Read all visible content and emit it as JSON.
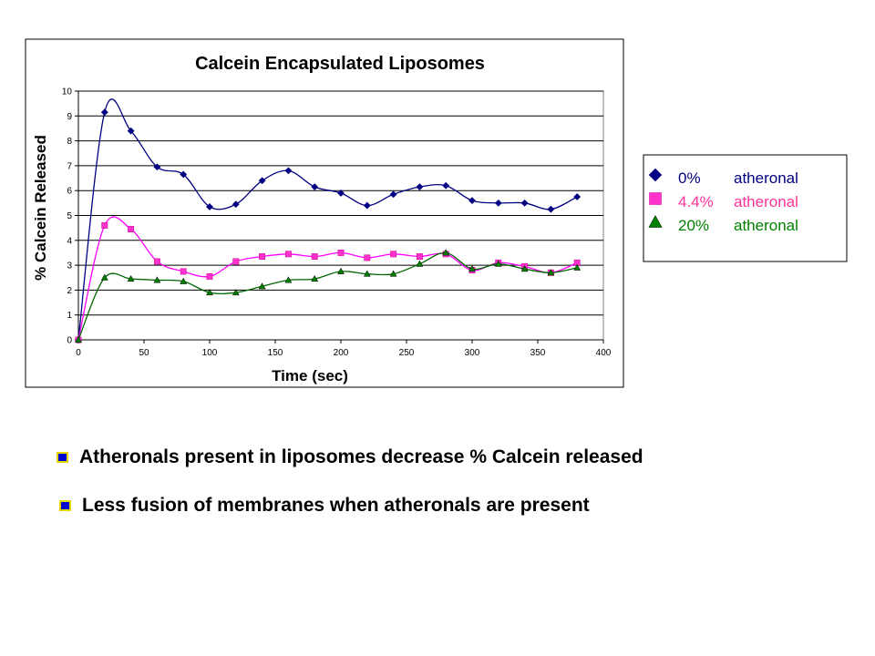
{
  "chart_data": {
    "type": "line",
    "title": "Calcein Encapsulated Liposomes",
    "xlabel": "Time (sec)",
    "ylabel": "% Calcein Released",
    "xlim": [
      0,
      400
    ],
    "ylim": [
      0,
      10
    ],
    "xticks": [
      0,
      50,
      100,
      150,
      200,
      250,
      300,
      350,
      400
    ],
    "yticks": [
      0,
      1,
      2,
      3,
      4,
      5,
      6,
      7,
      8,
      9,
      10
    ],
    "grid": "horizontal",
    "legend_position": "right",
    "series": [
      {
        "pct": "0%",
        "label": "atheronal",
        "color": "#000080",
        "text_color": "#000080",
        "marker": "diamond",
        "marker_color": "#000080",
        "x": [
          0,
          20,
          40,
          60,
          80,
          100,
          120,
          140,
          160,
          180,
          200,
          220,
          240,
          260,
          280,
          300,
          320,
          340,
          360,
          380
        ],
        "y": [
          0,
          9.15,
          8.4,
          6.95,
          6.65,
          5.35,
          5.45,
          6.4,
          6.8,
          6.15,
          5.9,
          5.4,
          5.85,
          6.15,
          6.2,
          5.6,
          5.5,
          5.5,
          5.25,
          5.75
        ]
      },
      {
        "pct": "4.4%",
        "label": "atheronal",
        "color": "#ff00ff",
        "text_color": "#ff3399",
        "marker": "square",
        "marker_color": "#ff33cc",
        "x": [
          0,
          20,
          40,
          60,
          80,
          100,
          120,
          140,
          160,
          180,
          200,
          220,
          240,
          260,
          280,
          300,
          320,
          340,
          360,
          380
        ],
        "y": [
          0,
          4.6,
          4.45,
          3.15,
          2.75,
          2.55,
          3.15,
          3.35,
          3.45,
          3.35,
          3.5,
          3.3,
          3.45,
          3.35,
          3.45,
          2.8,
          3.1,
          2.95,
          2.7,
          3.1
        ]
      },
      {
        "pct": "20%",
        "label": "atheronal",
        "color": "#006600",
        "text_color": "#008000",
        "marker": "triangle",
        "marker_color": "#008000",
        "x": [
          0,
          20,
          40,
          60,
          80,
          100,
          120,
          140,
          160,
          180,
          200,
          220,
          240,
          260,
          280,
          300,
          320,
          340,
          360,
          380
        ],
        "y": [
          0,
          2.5,
          2.45,
          2.4,
          2.35,
          1.9,
          1.9,
          2.15,
          2.4,
          2.45,
          2.75,
          2.65,
          2.65,
          3.05,
          3.5,
          2.85,
          3.05,
          2.85,
          2.7,
          2.9
        ]
      }
    ]
  },
  "bullets": [
    "Atheronals present in liposomes decrease % Calcein released",
    "Less fusion of membranes when atheronals are present"
  ]
}
